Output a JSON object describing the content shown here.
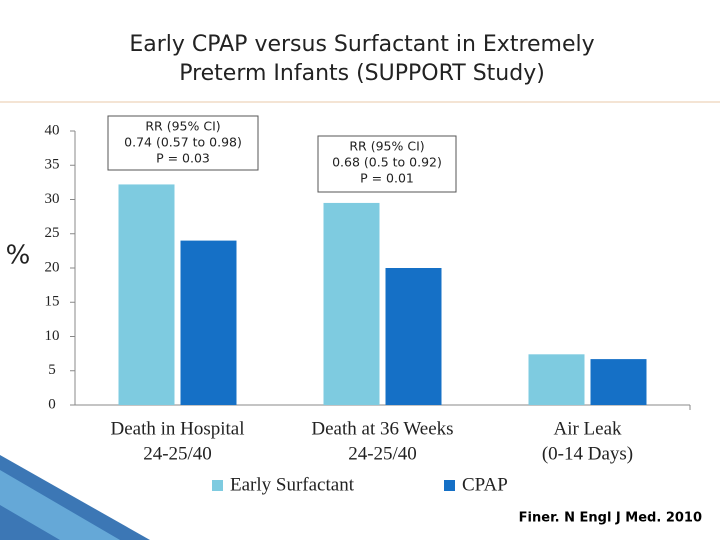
{
  "chart_data": {
    "type": "bar",
    "title": [
      "Early CPAP versus Surfactant in Extremely",
      "Preterm Infants (SUPPORT Study)"
    ],
    "y_label": "%",
    "categories": [
      [
        "Death in Hospital",
        "24-25/40"
      ],
      [
        "Death at 36 Weeks",
        "24-25/40"
      ],
      [
        "Air Leak",
        "(0-14 Days)"
      ]
    ],
    "series": [
      {
        "name": "Early Surfactant",
        "color": "#7ecbe0",
        "values": [
          32.2,
          29.5,
          7.4
        ]
      },
      {
        "name": "CPAP",
        "color": "#1570c6",
        "values": [
          24,
          20,
          6.7
        ]
      }
    ],
    "ylim": [
      0,
      40
    ],
    "yticks": [
      0,
      5,
      10,
      15,
      20,
      25,
      30,
      35,
      40
    ],
    "annotations": [
      [
        "RR (95% CI)",
        "0.74 (0.57 to 0.98)",
        "P = 0.03"
      ],
      [
        "RR (95% CI)",
        "0.68 (0.5 to 0.92)",
        "P = 0.01"
      ]
    ],
    "source": "Finer. N Engl J Med. 2010"
  }
}
